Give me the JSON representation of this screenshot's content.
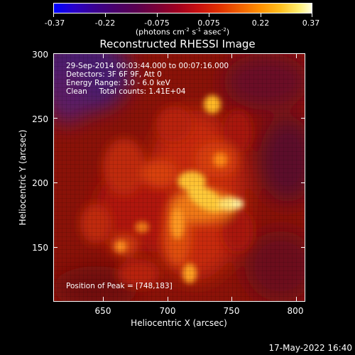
{
  "colorbar": {
    "tick_labels": [
      "-0.37",
      "-0.22",
      "-0.075",
      "0.075",
      "0.22",
      "0.37"
    ],
    "units_pre": "(photons cm",
    "units_exp1": "-2",
    "units_mid": " s",
    "units_exp2": "-1",
    "units_mid2": " asec",
    "units_exp3": "-2",
    "units_post": ")"
  },
  "title": "Reconstructed RHESSI Image",
  "annotations": {
    "line1": "29-Sep-2014 00:03:44.000 to 00:07:16.000",
    "line2": "Detectors: 3F 6F 9F, Att 0",
    "line3": "Energy Range: 3.0 - 6.0 keV",
    "line4": "Clean     Total counts: 1.41E+04",
    "peak": "Position of Peak = [748,183]"
  },
  "axes": {
    "xlabel": "Heliocentric X (arcsec)",
    "ylabel": "Heliocentric Y (arcsec)",
    "xticks": [
      "650",
      "700",
      "750",
      "800"
    ],
    "yticks": [
      "300",
      "250",
      "200",
      "150"
    ],
    "xlim": [
      612,
      805
    ],
    "ylim": [
      108,
      300
    ]
  },
  "footer": {
    "timestamp": "17-May-2022 16:40"
  }
}
